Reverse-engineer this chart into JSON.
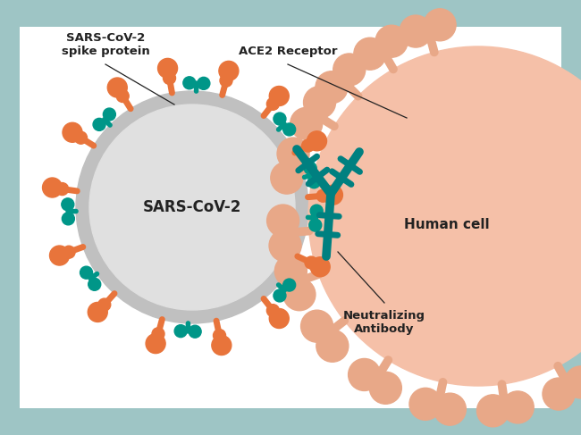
{
  "bg_color": "#9ec5c5",
  "panel_color": "#ffffff",
  "virus_body_color": "#e0e0e0",
  "virus_ring_color": "#c0c0c0",
  "spike_color": "#e8743b",
  "teal_color": "#009688",
  "antibody_color": "#008080",
  "human_cell_color": "#f5c0a8",
  "human_receptor_color": "#e8a888",
  "text_color": "#222222",
  "label_spike": "SARS-CoV-2\nspike protein",
  "label_ace2": "ACE2 Receptor",
  "label_antibody": "Neutralizing\nAntibody",
  "label_human": "Human cell",
  "label_virus": "SARS-CoV-2",
  "fig_w": 6.5,
  "fig_h": 4.87,
  "dpi": 100
}
